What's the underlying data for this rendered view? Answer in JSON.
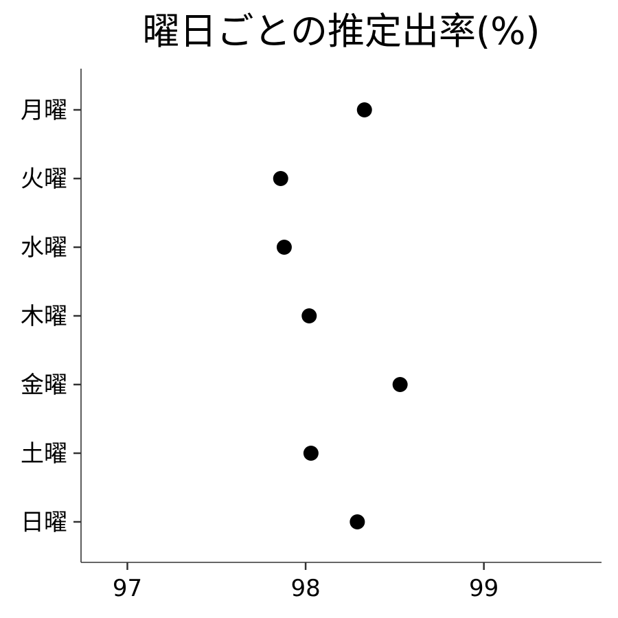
{
  "chart_data": {
    "type": "scatter",
    "title": "曜日ごとの推定出率(%)",
    "xlabel": "",
    "ylabel": "",
    "categories": [
      "月曜",
      "火曜",
      "水曜",
      "木曜",
      "金曜",
      "土曜",
      "日曜"
    ],
    "values": [
      98.33,
      97.86,
      97.88,
      98.02,
      98.53,
      98.03,
      98.29
    ],
    "xlim": [
      96.74,
      99.66
    ],
    "xticks": [
      97,
      98,
      99
    ],
    "xtick_labels": [
      "97",
      "98",
      "99"
    ],
    "grid": false,
    "legend": "none",
    "point_color": "#000000",
    "axis_color": "#333333"
  }
}
